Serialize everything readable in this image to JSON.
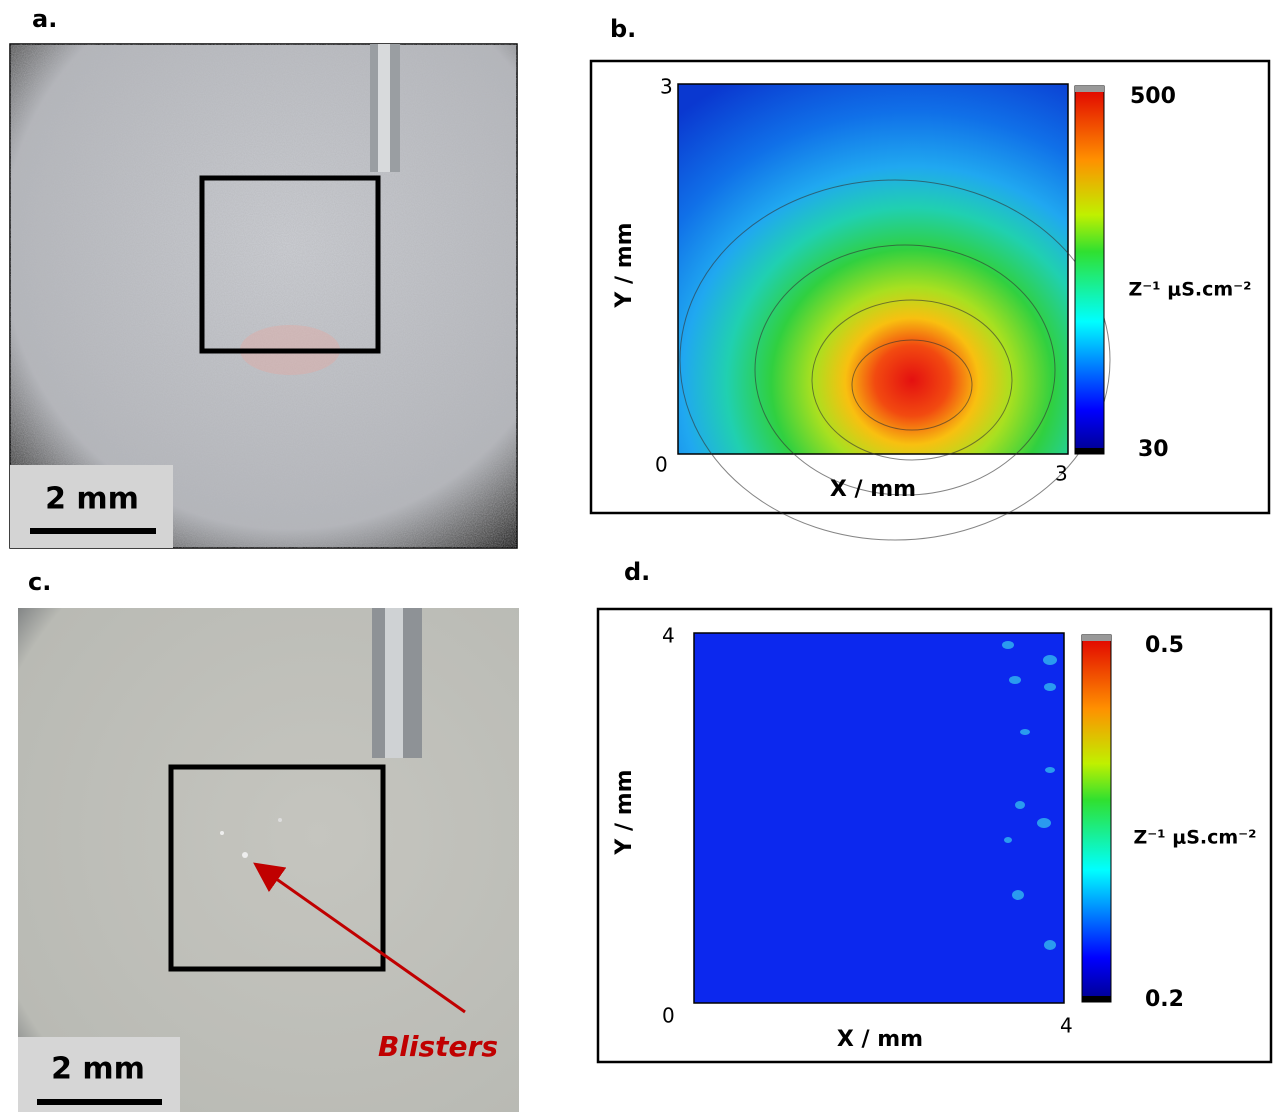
{
  "panels": {
    "a": {
      "label": "a.",
      "scale_bar": "2 mm"
    },
    "b": {
      "label": "b.",
      "xlabel": "X / mm",
      "ylabel": "Y / mm",
      "xlim": [
        0,
        3
      ],
      "ylim": [
        0,
        3
      ],
      "colorbar": {
        "label": "Z⁻¹ μS.cm⁻²",
        "max": 500,
        "min": 30
      }
    },
    "c": {
      "label": "c.",
      "scale_bar": "2 mm",
      "annotation": "Blisters"
    },
    "d": {
      "label": "d.",
      "xlabel": "X / mm",
      "ylabel": "Y / mm",
      "xlim": [
        0,
        4
      ],
      "ylim": [
        0,
        4
      ],
      "colorbar": {
        "label": "Z⁻¹ μS.cm⁻²",
        "max": 0.5,
        "min": 0.2
      }
    }
  }
}
